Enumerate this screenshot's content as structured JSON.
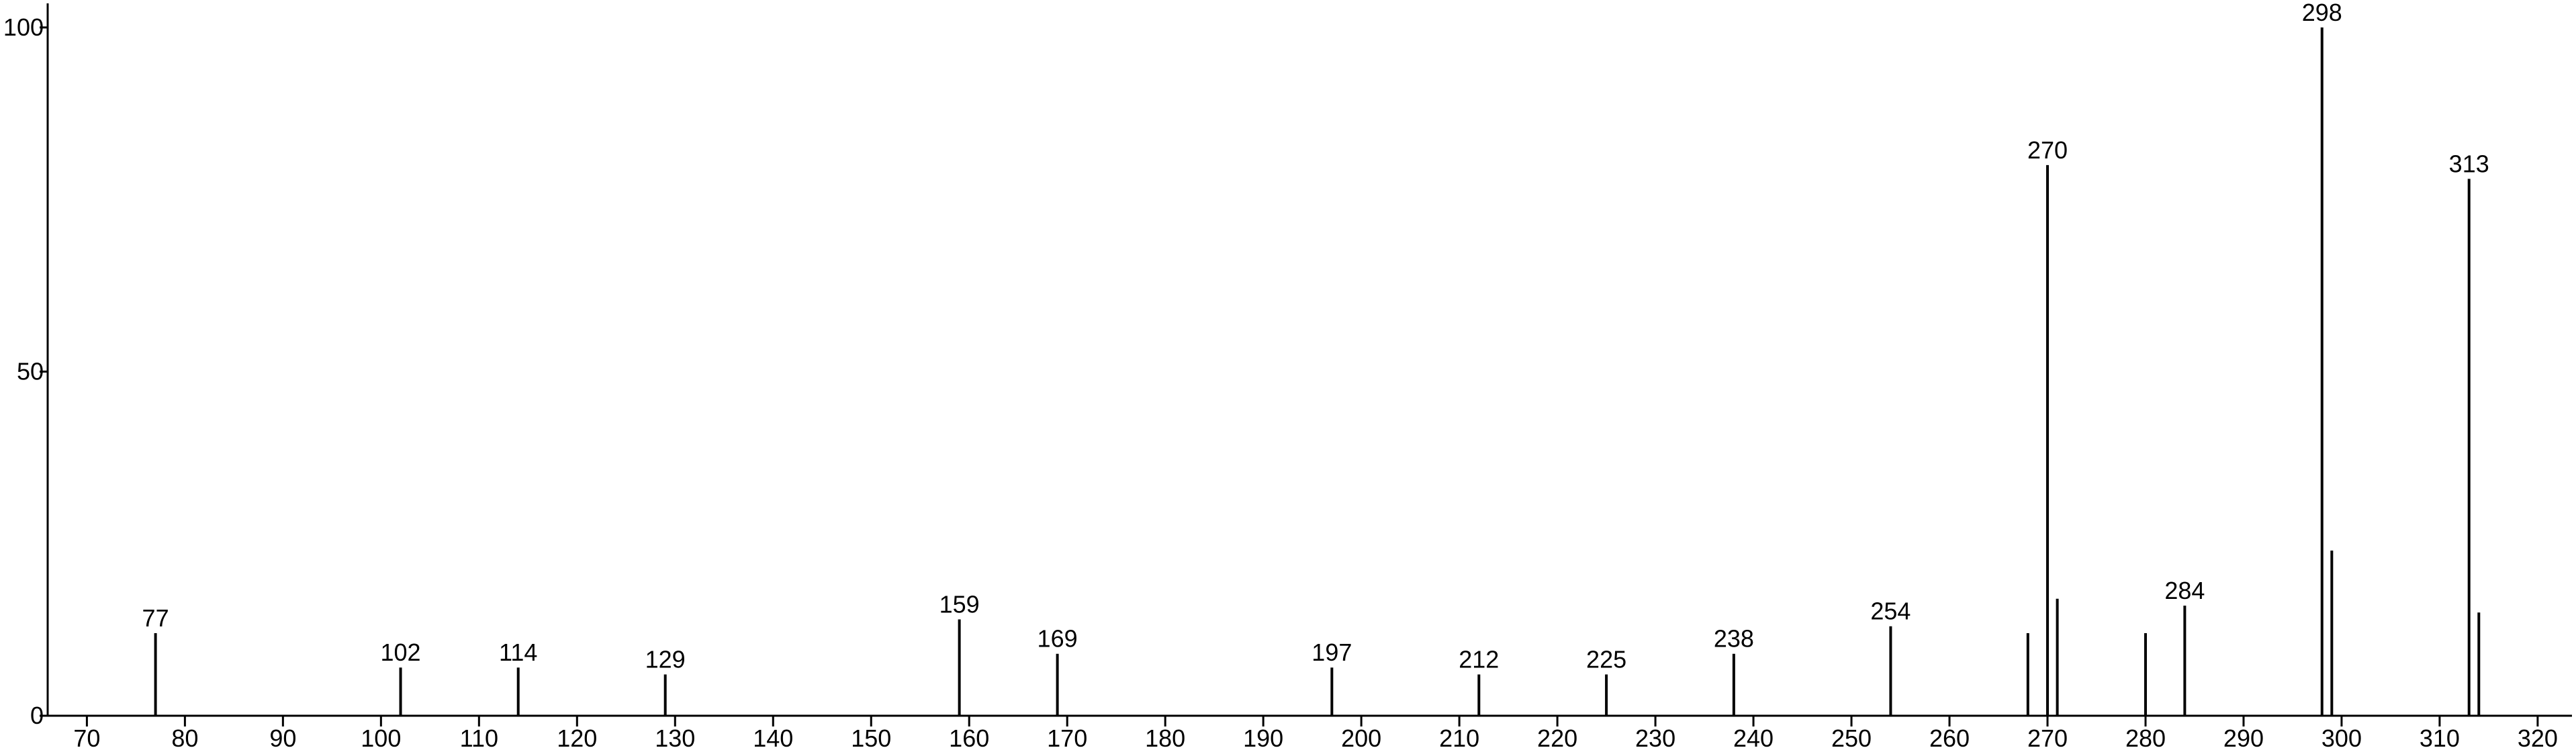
{
  "chart_data": {
    "type": "spectrum",
    "x": [
      77,
      102,
      114,
      129,
      159,
      169,
      197,
      212,
      225,
      238,
      254,
      268,
      270,
      271,
      280,
      284,
      298,
      299,
      313,
      314
    ],
    "values": [
      12,
      7,
      7,
      6,
      14,
      9,
      7,
      6,
      6,
      9,
      13,
      12,
      80,
      17,
      12,
      16,
      100,
      24,
      78,
      15
    ],
    "labeled": [
      true,
      true,
      true,
      true,
      true,
      true,
      true,
      true,
      true,
      true,
      true,
      false,
      true,
      false,
      false,
      true,
      true,
      false,
      true,
      false
    ],
    "color": "#000000",
    "xlim": [
      66,
      323.5
    ],
    "ylim": [
      0,
      103.5
    ],
    "xticks": [
      70,
      80,
      90,
      100,
      110,
      120,
      130,
      140,
      150,
      160,
      170,
      180,
      190,
      200,
      210,
      220,
      230,
      240,
      250,
      260,
      270,
      280,
      290,
      300,
      310,
      320
    ],
    "yticks": [
      0,
      50,
      100
    ]
  }
}
